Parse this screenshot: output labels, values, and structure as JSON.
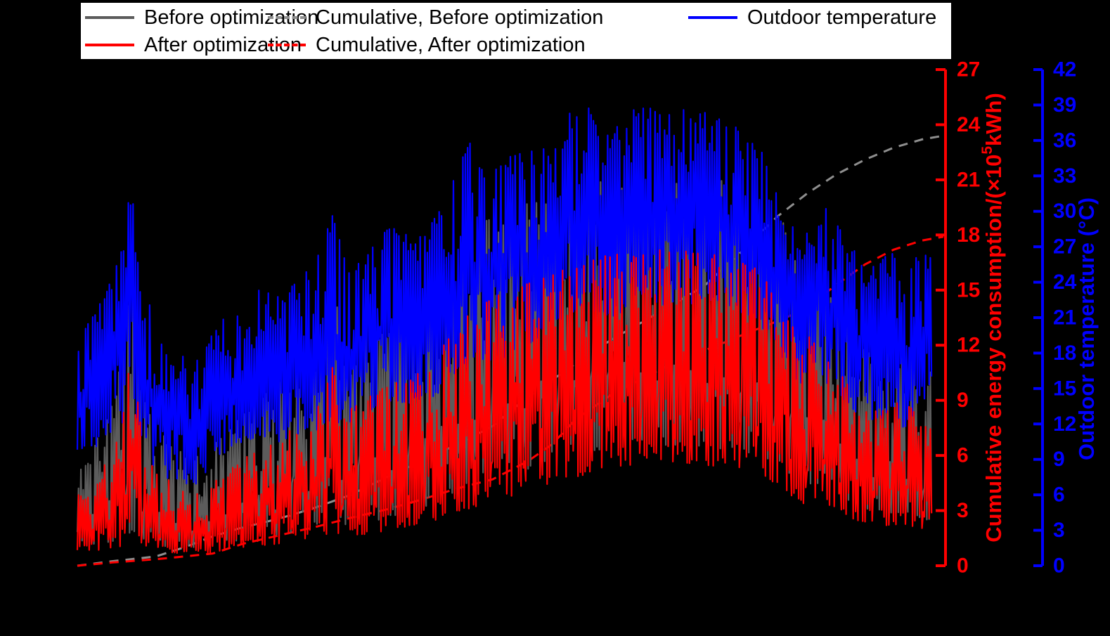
{
  "legend": {
    "items": [
      {
        "label": "Before optimization",
        "color": "#5c5c5c",
        "style": "solid"
      },
      {
        "label": "Cumulative, Before optimization",
        "color": "#8e8e8e",
        "style": "dashed"
      },
      {
        "label": "Outdoor temperature",
        "color": "#0000ff",
        "style": "solid"
      },
      {
        "label": "After optimization",
        "color": "#ff0000",
        "style": "solid"
      },
      {
        "label": "Cumulative, After optimization",
        "color": "#ff0000",
        "style": "dashed"
      }
    ]
  },
  "axes": {
    "right_energy": {
      "title_parts": [
        "Cumulative energy consumption/(×10",
        "5",
        "kWh)"
      ],
      "color": "#ff0000",
      "min": 0,
      "max": 27,
      "tick_step": 3,
      "ticks": [
        0,
        3,
        6,
        9,
        12,
        15,
        18,
        21,
        24,
        27
      ]
    },
    "right_temp": {
      "title": "Outdoor temperature (°C)",
      "color": "#0000ff",
      "min": 0,
      "max": 42,
      "tick_step": 3,
      "ticks": [
        0,
        3,
        6,
        9,
        12,
        15,
        18,
        21,
        24,
        27,
        30,
        33,
        36,
        39,
        42
      ]
    },
    "left": {
      "visible": false
    },
    "bottom": {
      "visible": false
    }
  },
  "chart_data": {
    "type": "line",
    "title": "",
    "legend_position": "top",
    "background": "#000000",
    "x_axis_note": "x tick labels not visible in image; domain encoded as day index 0-365 (about one year)",
    "left_axis_note": "instantaneous energy series scale not visible; values expressed on the red cumulative axis scale (x10^5 kWh units of that axis)",
    "series": [
      {
        "name": "Before optimization",
        "color": "#5c5c5c",
        "style": "solid",
        "axis": "energy",
        "representation": "daily min/max envelope [day, lo, hi]",
        "points": [
          [
            0,
            1.0,
            5.5
          ],
          [
            8,
            1.2,
            7.0
          ],
          [
            14,
            1.3,
            8.5
          ],
          [
            19,
            1.5,
            11.5
          ],
          [
            23,
            1.8,
            15.8
          ],
          [
            27,
            1.5,
            10.0
          ],
          [
            33,
            1.1,
            7.5
          ],
          [
            41,
            1.0,
            6.5
          ],
          [
            48,
            0.9,
            5.8
          ],
          [
            55,
            1.0,
            6.2
          ],
          [
            62,
            1.2,
            7.2
          ],
          [
            70,
            1.4,
            8.2
          ],
          [
            78,
            1.5,
            9.2
          ],
          [
            85,
            1.7,
            10.0
          ],
          [
            93,
            1.9,
            10.8
          ],
          [
            101,
            2.2,
            12.0
          ],
          [
            108,
            2.5,
            14.8
          ],
          [
            114,
            2.2,
            12.2
          ],
          [
            121,
            2.3,
            12.8
          ],
          [
            130,
            2.6,
            13.5
          ],
          [
            138,
            2.9,
            14.2
          ],
          [
            146,
            3.2,
            15.0
          ],
          [
            154,
            3.6,
            16.2
          ],
          [
            161,
            4.0,
            17.6
          ],
          [
            168,
            4.4,
            18.6
          ],
          [
            175,
            4.7,
            19.2
          ],
          [
            183,
            5.0,
            19.5
          ],
          [
            191,
            5.3,
            19.8
          ],
          [
            199,
            5.6,
            20.1
          ],
          [
            207,
            5.9,
            20.5
          ],
          [
            215,
            6.1,
            20.8
          ],
          [
            223,
            6.3,
            21.0
          ],
          [
            231,
            6.4,
            21.0
          ],
          [
            239,
            6.5,
            21.1
          ],
          [
            247,
            6.5,
            21.2
          ],
          [
            255,
            6.5,
            21.2
          ],
          [
            263,
            6.4,
            21.1
          ],
          [
            271,
            6.3,
            21.0
          ],
          [
            279,
            6.2,
            20.8
          ],
          [
            287,
            6.0,
            20.4
          ],
          [
            294,
            5.5,
            19.6
          ],
          [
            300,
            5.0,
            18.5
          ],
          [
            304,
            4.0,
            15.5
          ],
          [
            308,
            4.3,
            16.5
          ],
          [
            313,
            4.5,
            16.0
          ],
          [
            318,
            4.0,
            14.8
          ],
          [
            323,
            3.6,
            13.8
          ],
          [
            328,
            3.2,
            12.8
          ],
          [
            333,
            3.0,
            12.0
          ],
          [
            338,
            2.8,
            11.4
          ],
          [
            343,
            2.8,
            11.8
          ],
          [
            348,
            2.9,
            12.2
          ],
          [
            353,
            2.7,
            11.5
          ],
          [
            358,
            2.5,
            10.8
          ],
          [
            360,
            2.5,
            10.5
          ]
        ]
      },
      {
        "name": "After optimization",
        "color": "#ff0000",
        "style": "solid",
        "axis": "energy",
        "representation": "daily min/max envelope [day, lo, hi]",
        "points": [
          [
            0,
            0.7,
            3.8
          ],
          [
            8,
            0.8,
            4.8
          ],
          [
            14,
            0.9,
            6.0
          ],
          [
            19,
            1.0,
            8.5
          ],
          [
            23,
            1.3,
            14.0
          ],
          [
            27,
            1.1,
            7.0
          ],
          [
            33,
            0.8,
            5.2
          ],
          [
            41,
            0.7,
            4.5
          ],
          [
            48,
            0.6,
            4.0
          ],
          [
            55,
            0.7,
            4.3
          ],
          [
            62,
            0.8,
            5.0
          ],
          [
            70,
            1.0,
            5.8
          ],
          [
            78,
            1.1,
            6.5
          ],
          [
            85,
            1.2,
            7.1
          ],
          [
            93,
            1.4,
            7.7
          ],
          [
            101,
            1.6,
            8.5
          ],
          [
            108,
            1.8,
            11.0
          ],
          [
            114,
            1.6,
            8.8
          ],
          [
            121,
            1.7,
            9.2
          ],
          [
            130,
            1.9,
            9.8
          ],
          [
            138,
            2.1,
            10.4
          ],
          [
            146,
            2.3,
            11.0
          ],
          [
            154,
            2.6,
            12.0
          ],
          [
            161,
            2.9,
            13.2
          ],
          [
            168,
            3.2,
            14.0
          ],
          [
            175,
            3.5,
            14.6
          ],
          [
            183,
            3.8,
            15.0
          ],
          [
            191,
            4.1,
            15.4
          ],
          [
            199,
            4.4,
            15.8
          ],
          [
            207,
            4.7,
            16.2
          ],
          [
            215,
            5.0,
            16.6
          ],
          [
            223,
            5.2,
            16.9
          ],
          [
            231,
            5.4,
            17.0
          ],
          [
            239,
            5.5,
            17.1
          ],
          [
            247,
            5.6,
            17.2
          ],
          [
            255,
            5.6,
            17.2
          ],
          [
            263,
            5.5,
            17.1
          ],
          [
            271,
            5.4,
            16.9
          ],
          [
            279,
            5.2,
            16.6
          ],
          [
            287,
            5.0,
            16.1
          ],
          [
            294,
            4.5,
            15.2
          ],
          [
            300,
            4.0,
            14.0
          ],
          [
            304,
            3.2,
            11.5
          ],
          [
            308,
            3.5,
            12.5
          ],
          [
            313,
            3.6,
            12.0
          ],
          [
            318,
            3.2,
            11.0
          ],
          [
            323,
            2.8,
            10.2
          ],
          [
            328,
            2.5,
            9.4
          ],
          [
            333,
            2.3,
            8.8
          ],
          [
            338,
            2.2,
            8.4
          ],
          [
            343,
            2.2,
            8.7
          ],
          [
            348,
            2.3,
            9.0
          ],
          [
            353,
            2.1,
            8.4
          ],
          [
            358,
            2.0,
            7.8
          ],
          [
            360,
            2.0,
            7.5
          ]
        ]
      },
      {
        "name": "Outdoor temperature",
        "color": "#0000ff",
        "style": "solid",
        "axis": "temperature",
        "representation": "daily min/max envelope [day, lo, hi]",
        "points": [
          [
            0,
            8.5,
            19
          ],
          [
            6,
            9.5,
            21
          ],
          [
            12,
            11,
            23
          ],
          [
            19,
            12,
            27
          ],
          [
            23,
            14,
            33
          ],
          [
            27,
            11,
            25
          ],
          [
            33,
            8,
            20
          ],
          [
            41,
            7,
            18
          ],
          [
            48,
            6.5,
            17.5
          ],
          [
            55,
            8,
            19
          ],
          [
            62,
            9.5,
            21
          ],
          [
            70,
            10.5,
            22.5
          ],
          [
            78,
            11,
            23.5
          ],
          [
            85,
            10.5,
            23
          ],
          [
            93,
            11,
            24
          ],
          [
            101,
            11.5,
            26
          ],
          [
            108,
            12,
            30
          ],
          [
            114,
            12,
            25
          ],
          [
            121,
            13,
            26
          ],
          [
            128,
            13.5,
            28
          ],
          [
            134,
            14,
            29
          ],
          [
            141,
            13.5,
            27.5
          ],
          [
            148,
            14,
            28.5
          ],
          [
            155,
            15,
            31
          ],
          [
            161,
            16,
            34
          ],
          [
            166,
            17,
            36
          ],
          [
            172,
            17,
            33.5
          ],
          [
            178,
            17.5,
            34
          ],
          [
            185,
            18,
            35
          ],
          [
            192,
            19,
            35.5
          ],
          [
            199,
            20,
            36.5
          ],
          [
            206,
            21,
            38
          ],
          [
            212,
            22,
            39.5
          ],
          [
            219,
            21.5,
            38
          ],
          [
            226,
            21,
            37
          ],
          [
            233,
            22,
            38.5
          ],
          [
            240,
            22.5,
            39
          ],
          [
            247,
            22,
            38
          ],
          [
            254,
            22.5,
            38.5
          ],
          [
            261,
            22,
            39
          ],
          [
            268,
            22.5,
            38
          ],
          [
            275,
            22,
            37.5
          ],
          [
            282,
            21,
            36.5
          ],
          [
            289,
            20,
            35
          ],
          [
            295,
            18,
            32.5
          ],
          [
            300,
            16.5,
            30
          ],
          [
            304,
            15,
            26.5
          ],
          [
            308,
            16.5,
            30
          ],
          [
            313,
            16,
            31
          ],
          [
            318,
            15,
            29.5
          ],
          [
            323,
            14,
            28
          ],
          [
            328,
            13,
            26.5
          ],
          [
            333,
            12.5,
            26
          ],
          [
            338,
            12,
            25.5
          ],
          [
            343,
            13.5,
            27
          ],
          [
            348,
            11.5,
            24.5
          ],
          [
            353,
            13,
            26
          ],
          [
            357,
            14,
            26.5
          ],
          [
            360,
            16,
            26
          ]
        ]
      },
      {
        "name": "Cumulative, Before optimization",
        "color": "#8e8e8e",
        "style": "dashed",
        "axis": "energy",
        "representation": "cumulative curve [day, value]",
        "points": [
          [
            0,
            0
          ],
          [
            15,
            0.25
          ],
          [
            33,
            0.5
          ],
          [
            45,
            1.0
          ],
          [
            57,
            1.6
          ],
          [
            70,
            2.1
          ],
          [
            80,
            2.4
          ],
          [
            90,
            2.75
          ],
          [
            100,
            3.15
          ],
          [
            115,
            3.85
          ],
          [
            130,
            4.8
          ],
          [
            145,
            5.7
          ],
          [
            160,
            6.6
          ],
          [
            175,
            7.6
          ],
          [
            190,
            9.2
          ],
          [
            200,
            10.1
          ],
          [
            210,
            11.0
          ],
          [
            225,
            12.3
          ],
          [
            240,
            13.4
          ],
          [
            252,
            14.3
          ],
          [
            264,
            15.2
          ],
          [
            280,
            17.1
          ],
          [
            295,
            19.0
          ],
          [
            308,
            20.3
          ],
          [
            320,
            21.3
          ],
          [
            332,
            22.1
          ],
          [
            344,
            22.75
          ],
          [
            356,
            23.2
          ],
          [
            365,
            23.4
          ]
        ]
      },
      {
        "name": "Cumulative, After optimization",
        "color": "#ff0000",
        "style": "dashed",
        "axis": "energy",
        "representation": "cumulative curve [day, value]",
        "points": [
          [
            0,
            0
          ],
          [
            15,
            0.18
          ],
          [
            33,
            0.35
          ],
          [
            45,
            0.5
          ],
          [
            57,
            0.66
          ],
          [
            70,
            1.2
          ],
          [
            80,
            1.5
          ],
          [
            90,
            1.8
          ],
          [
            100,
            2.1
          ],
          [
            115,
            2.6
          ],
          [
            130,
            3.05
          ],
          [
            145,
            3.6
          ],
          [
            160,
            4.2
          ],
          [
            175,
            4.7
          ],
          [
            190,
            5.7
          ],
          [
            200,
            6.6
          ],
          [
            210,
            7.95
          ],
          [
            225,
            9.3
          ],
          [
            237,
            10.1
          ],
          [
            249,
            10.9
          ],
          [
            260,
            11.5
          ],
          [
            270,
            12.0
          ],
          [
            281,
            12.6
          ],
          [
            292,
            13.15
          ],
          [
            303,
            13.75
          ],
          [
            308,
            14.1
          ],
          [
            320,
            15.3
          ],
          [
            332,
            16.4
          ],
          [
            344,
            17.2
          ],
          [
            356,
            17.7
          ],
          [
            365,
            17.9
          ]
        ]
      }
    ]
  }
}
